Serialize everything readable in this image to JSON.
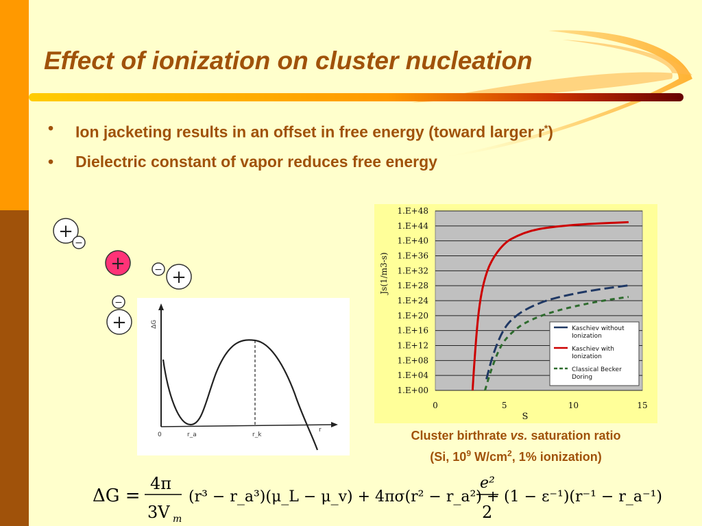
{
  "slide": {
    "title": "Effect of ionization on cluster nucleation",
    "bullets": [
      {
        "text": "Ion jacketing results in an offset in free energy (toward larger r",
        "sup": "*",
        "tail": ")"
      },
      {
        "text": "Dielectric constant of vapor reduces free energy"
      }
    ],
    "caption": {
      "line1_a": "Cluster birthrate ",
      "line1_b": "vs.",
      "line1_c": " saturation ratio",
      "line2_a": "(Si, 10",
      "line2_sup1": "9",
      "line2_b": " W/cm",
      "line2_sup2": "2",
      "line2_c": ", 1% ionization)"
    },
    "colors": {
      "orange": "#FF9900",
      "brown": "#A0520A",
      "background": "#FFFFCC",
      "chart_bg": "#FFFF99"
    }
  },
  "sketch": {
    "ylabel": "ΔG",
    "origin": "0",
    "label_ra": "r_a",
    "label_rk": "r_k",
    "label_r": "r"
  },
  "ions": {
    "plus": "+",
    "minus": "−"
  },
  "equation": {
    "lhs": "ΔG =",
    "frac1_num": "4π",
    "frac1_den": "3V",
    "frac1_den_sub": "m",
    "term1": "(r³ − r_a³)(μ_L − μ_v) + 4πσ(r² − r_a²) +",
    "frac2_num": "e²",
    "frac2_den": "2",
    "term2": "(1 − ε⁻¹)(r⁻¹ − r_a⁻¹)"
  },
  "chart_data": {
    "type": "line",
    "xlabel": "S",
    "ylabel": "Js(1/m3-s)",
    "xlim": [
      0,
      15
    ],
    "x_ticks": [
      "0",
      "5",
      "10",
      "15"
    ],
    "y_ticks": [
      "1.E+00",
      "1.E+04",
      "1.E+08",
      "1.E+12",
      "1.E+16",
      "1.E+20",
      "1.E+24",
      "1.E+28",
      "1.E+32",
      "1.E+36",
      "1.E+40",
      "1.E+44",
      "1.E+48"
    ],
    "ylim_log10": [
      0,
      48
    ],
    "grid": true,
    "legend_position": "bottom-right",
    "series": [
      {
        "name": "Kaschiev without Ionization",
        "color": "#1F3864",
        "style": "dashed-long",
        "x": [
          3.7,
          4.2,
          5,
          6,
          7,
          8,
          9,
          10,
          11,
          12,
          13,
          14
        ],
        "y": [
          3,
          10,
          17,
          20.5,
          22.5,
          24,
          25,
          25.8,
          26.5,
          27.1,
          27.6,
          28.1
        ]
      },
      {
        "name": "Kaschiev with Ionization",
        "color": "#CC0000",
        "style": "solid",
        "x": [
          2.7,
          2.8,
          3,
          3.2,
          3.5,
          4,
          5,
          6,
          7,
          8,
          10,
          12,
          14
        ],
        "y": [
          0,
          6,
          16,
          23,
          29,
          34.5,
          39.5,
          41.5,
          42.8,
          43.5,
          44.3,
          44.7,
          45
        ]
      },
      {
        "name": "Classical Becker Doring",
        "color": "#2E6B2E",
        "style": "dashed",
        "x": [
          3.6,
          4,
          4.5,
          5,
          6,
          7,
          8,
          9,
          10,
          11,
          12,
          13,
          14
        ],
        "y": [
          0,
          5,
          10,
          13.5,
          17,
          19,
          20.4,
          21.5,
          22.4,
          23.2,
          23.9,
          24.5,
          25
        ]
      }
    ]
  }
}
